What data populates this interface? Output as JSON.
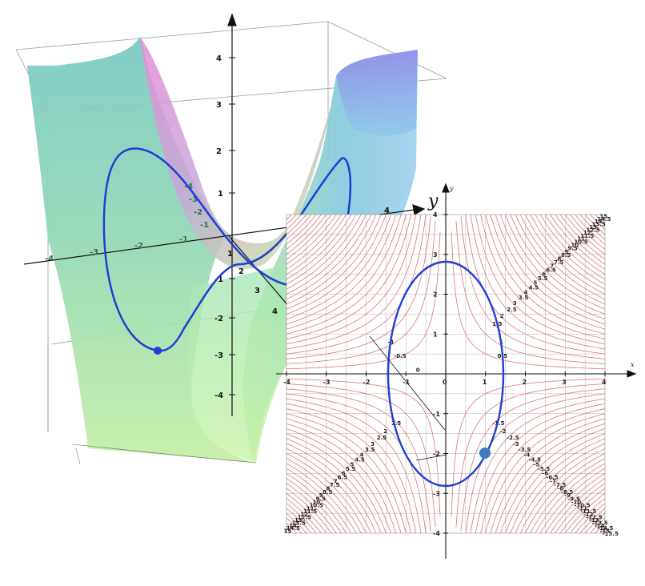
{
  "surface_plot": {
    "axis_labels": {
      "x": "x",
      "y": "y"
    },
    "x_ticks": [
      "1",
      "2",
      "3",
      "4"
    ],
    "y_ticks_left": [
      "-4",
      "-3",
      "-2",
      "-1"
    ],
    "y_ticks_right": [
      "2",
      "4"
    ],
    "z_ticks": [
      "4",
      "3",
      "2",
      "1",
      "-1",
      "-2",
      "-3",
      "-4"
    ],
    "back_ticks_x": [
      "-4",
      "-3",
      "-2",
      "-1"
    ],
    "back_ticks_y": [
      "-4",
      "-3",
      "-2",
      "-1"
    ],
    "colors": {
      "curve": "#1f3fd4",
      "point": "#1f3fd4",
      "axis": "#111111"
    }
  },
  "contour_plot": {
    "axis_labels": {
      "x": "x",
      "y": "y"
    },
    "x_ticks": [
      "-4",
      "-3",
      "-2",
      "-1",
      "0",
      "1",
      "2",
      "3",
      "4"
    ],
    "y_ticks": [
      "4",
      "3",
      "2",
      "1",
      "-1",
      "-2",
      "-3",
      "-4"
    ],
    "contour_labels_pos": [
      "1.5",
      "2",
      "2.5",
      "3",
      "3.5",
      "4",
      "4.5",
      "5",
      "5.5",
      "6",
      "6.5",
      "7",
      "7.5",
      "8",
      "8.5",
      "9",
      "9.5",
      "10",
      "10.5",
      "11",
      "11.5",
      "12",
      "12.5",
      "13",
      "13.5",
      "14",
      "14.5",
      "15"
    ],
    "contour_labels_neg": [
      "-1.5",
      "-2",
      "-2.5",
      "-3",
      "-3.5",
      "-4",
      "-4.5",
      "-5",
      "-5.5",
      "-6",
      "-6.5",
      "-7",
      "-7.5",
      "-8",
      "-8.5",
      "-9",
      "-9.5",
      "-10",
      "-10.5",
      "-11",
      "-11.5",
      "-12",
      "-12.5",
      "-13",
      "-13.5",
      "-14",
      "-14.5",
      "-15",
      "-15.5"
    ],
    "inner_labels": [
      "0.5",
      "-0.5",
      "1",
      "-1",
      "0"
    ],
    "colors": {
      "contour": "#d9777a",
      "grid": "#b5b5b5",
      "ellipse": "#1f3fd4",
      "point": "#3e7bc4",
      "axis": "#111111"
    }
  }
}
